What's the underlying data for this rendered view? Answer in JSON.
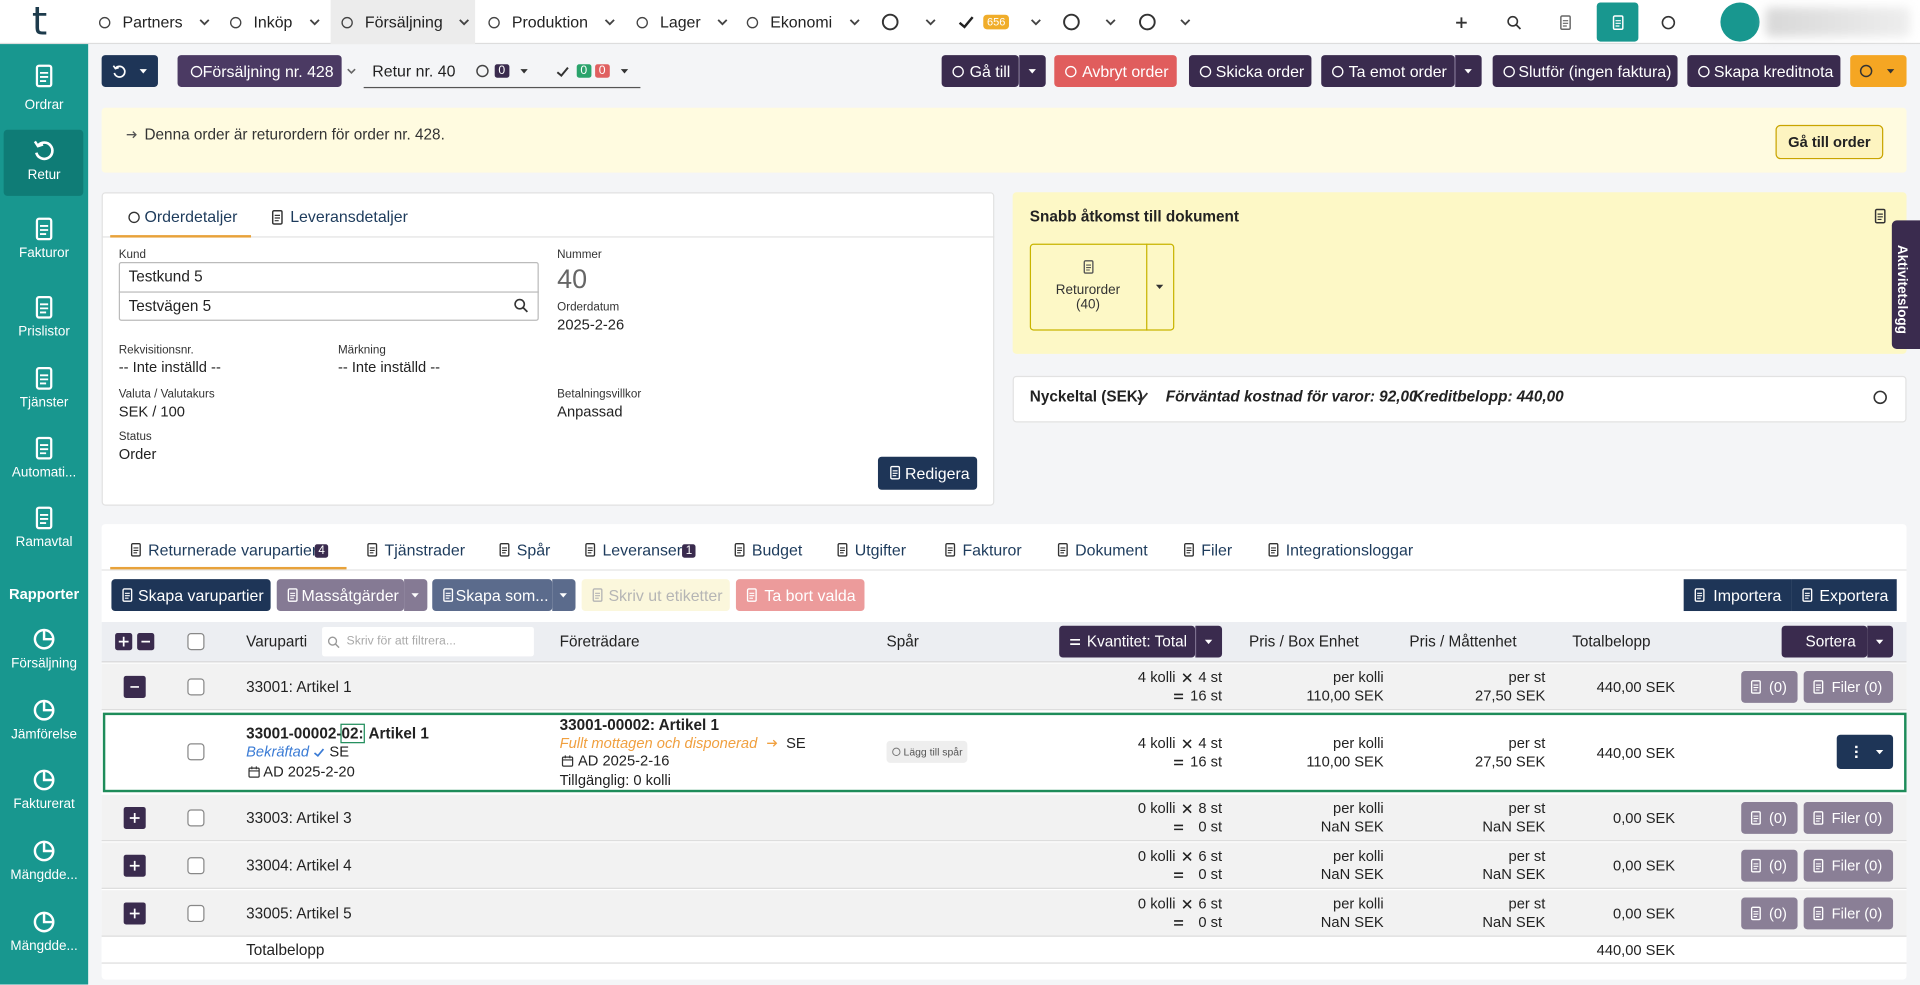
{
  "nav": {
    "logo": "t",
    "items": [
      "Partners",
      "Inköp",
      "Försäljning",
      "Produktion",
      "Lager",
      "Ekonomi"
    ],
    "badge": "656"
  },
  "sidebar": {
    "items": [
      "Ordrar",
      "Retur",
      "Fakturor",
      "Prislistor",
      "Tjänster",
      "Automati...",
      "Ramavtal"
    ],
    "section": "Rapporter",
    "reports": [
      "Försäljning",
      "Jämförelse",
      "Fakturerat",
      "Mängdde...",
      "Mängdde..."
    ]
  },
  "toolbar": {
    "order": "Försäljning nr. 428",
    "retur": "Retur nr. 40",
    "link_count": "0",
    "ok_count": "0",
    "error_count": "0",
    "actions": [
      "Gå till",
      "Avbryt order",
      "Skicka order",
      "Ta emot order",
      "Slutför (ingen faktura)",
      "Skapa kreditnota"
    ]
  },
  "banner": {
    "text": "Denna order är returordern för order nr. 428.",
    "button": "Gå till order"
  },
  "details": {
    "tabs": [
      "Orderdetaljer",
      "Leveransdetaljer"
    ],
    "customer_label": "Kund",
    "customer": "Testkund 5",
    "address": "Testvägen 5",
    "number_label": "Nummer",
    "number": "40",
    "date_label": "Orderdatum",
    "date": "2025-2-26",
    "fields": [
      {
        "label": "Rekvisitionsnr.",
        "value": "-- Inte inställd --"
      },
      {
        "label": "Märkning",
        "value": "-- Inte inställd --"
      },
      {
        "label": "Valuta / Valutakurs",
        "value": "SEK / 100"
      },
      {
        "label": "Betalningsvillkor",
        "value": "Anpassad"
      },
      {
        "label": "Status",
        "value": "Order"
      }
    ],
    "edit": "Redigera"
  },
  "documents": {
    "title": "Snabb åtkomst till dokument",
    "tile": [
      "Returorder",
      "(40)"
    ],
    "activity": "Aktivitetslogg"
  },
  "kpi": {
    "title": "Nyckeltal (SEK)",
    "cost": "Förväntad kostnad för varor: 92,00",
    "credit": "Kreditbelopp: 440,00"
  },
  "tabs": [
    {
      "label": "Returnerade varupartier",
      "badge": "4"
    },
    {
      "label": "Tjänstrader"
    },
    {
      "label": "Spår"
    },
    {
      "label": "Leveranser",
      "badge": "1"
    },
    {
      "label": "Budget"
    },
    {
      "label": "Utgifter"
    },
    {
      "label": "Fakturor"
    },
    {
      "label": "Dokument"
    },
    {
      "label": "Filer"
    },
    {
      "label": "Integrationsloggar"
    }
  ],
  "actions": {
    "create": "Skapa varupartier",
    "mass": "Massåtgärder",
    "create_as": "Skapa som...",
    "print": "Skriv ut etiketter",
    "delete": "Ta bort valda",
    "import": "Importera",
    "export": "Exportera"
  },
  "table": {
    "columns": {
      "lot": "Varuparti",
      "filter": "Skriv för att filtrera...",
      "representative": "Företrädare",
      "track": "Spår",
      "quantity": "Kvantitet: Total",
      "box_price": "Pris / Box Enhet",
      "unit_price": "Pris / Måttenhet",
      "total": "Totalbelopp",
      "sort": "Sortera"
    },
    "rows": [
      {
        "lot": "33001: Artikel 1",
        "expanded": true,
        "packages": "4 kolli",
        "per_package": "4 st",
        "quantity": "16 st",
        "box_unit": "per kolli",
        "box_price": "110,00 SEK",
        "unit": "per st",
        "unit_price": "27,50 SEK",
        "total": "440,00 SEK",
        "comments": "(0)",
        "files": "Filer (0)"
      },
      {
        "lot": "33003: Artikel 3",
        "expanded": false,
        "packages": "0 kolli",
        "per_package": "8 st",
        "quantity": "0 st",
        "box_unit": "per kolli",
        "box_price": "NaN SEK",
        "unit": "per st",
        "unit_price": "NaN SEK",
        "total": "0,00 SEK",
        "comments": "(0)",
        "files": "Filer (0)"
      },
      {
        "lot": "33004: Artikel 4",
        "expanded": false,
        "packages": "0 kolli",
        "per_package": "6 st",
        "quantity": "0 st",
        "box_unit": "per kolli",
        "box_price": "NaN SEK",
        "unit": "per st",
        "unit_price": "NaN SEK",
        "total": "0,00 SEK",
        "comments": "(0)",
        "files": "Filer (0)"
      },
      {
        "lot": "33005: Artikel 5",
        "expanded": false,
        "packages": "0 kolli",
        "per_package": "6 st",
        "quantity": "0 st",
        "box_unit": "per kolli",
        "box_price": "NaN SEK",
        "unit": "per st",
        "unit_price": "NaN SEK",
        "total": "0,00 SEK",
        "comments": "(0)",
        "files": "Filer (0)"
      }
    ],
    "child": {
      "lot_prefix": "33001-00002-",
      "lot_highlight": "02:",
      "lot_name": "Artikel 1",
      "status": "Bekräftad",
      "country": "SE",
      "date": "AD 2025-2-20",
      "rep": "33001-00002: Artikel 1",
      "rep_status": "Fullt mottagen och disponerad",
      "rep_country": "SE",
      "rep_date": "AD 2025-2-16",
      "available": "Tillgänglig: 0 kolli",
      "track_button": "Lägg till spår",
      "packages": "4 kolli",
      "per_package": "4 st",
      "quantity": "16 st",
      "box_unit": "per kolli",
      "box_price": "110,00 SEK",
      "unit": "per st",
      "unit_price": "27,50 SEK",
      "total": "440,00 SEK"
    },
    "footer": {
      "label": "Totalbelopp",
      "total": "440,00 SEK"
    }
  }
}
